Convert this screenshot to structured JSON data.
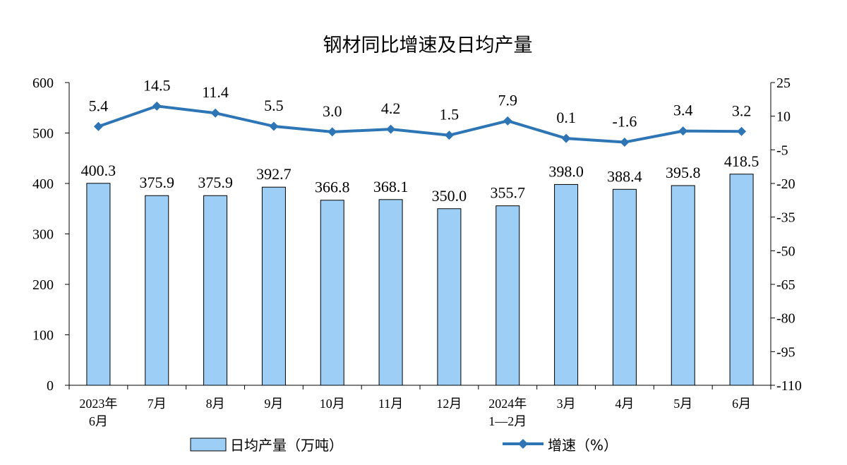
{
  "chart_data": {
    "type": "bar+line",
    "title": "钢材同比增速及日均产量",
    "categories": [
      [
        "2023年",
        "6月"
      ],
      [
        "7月"
      ],
      [
        "8月"
      ],
      [
        "9月"
      ],
      [
        "10月"
      ],
      [
        "11月"
      ],
      [
        "12月"
      ],
      [
        "2024年",
        "1—2月"
      ],
      [
        "3月"
      ],
      [
        "4月"
      ],
      [
        "5月"
      ],
      [
        "6月"
      ]
    ],
    "series": [
      {
        "name": "日均产量（万吨）",
        "type": "bar",
        "axis": "left",
        "values": [
          400.3,
          375.9,
          375.9,
          392.7,
          366.8,
          368.1,
          350.0,
          355.7,
          398.0,
          388.4,
          395.8,
          418.5
        ],
        "labels": [
          "400.3",
          "375.9",
          "375.9",
          "392.7",
          "366.8",
          "368.1",
          "350.0",
          "355.7",
          "398.0",
          "388.4",
          "395.8",
          "418.5"
        ],
        "color": "#9dcef5",
        "stroke": "#000000"
      },
      {
        "name": "增速（%）",
        "type": "line",
        "axis": "right",
        "values": [
          5.4,
          14.5,
          11.4,
          5.5,
          3.0,
          4.2,
          1.5,
          7.9,
          0.1,
          -1.6,
          3.4,
          3.2
        ],
        "labels": [
          "5.4",
          "14.5",
          "11.4",
          "5.5",
          "3.0",
          "4.2",
          "1.5",
          "7.9",
          "0.1",
          "-1.6",
          "3.4",
          "3.2"
        ],
        "color": "#2e75b6",
        "marker": "diamond"
      }
    ],
    "y_left": {
      "min": 0,
      "max": 600,
      "ticks": [
        0,
        100,
        200,
        300,
        400,
        500,
        600
      ]
    },
    "y_right": {
      "min": -110,
      "max": 25,
      "ticks": [
        25,
        10,
        -5,
        -20,
        -35,
        -50,
        -65,
        -80,
        -95,
        -110
      ]
    },
    "grid": false,
    "legend_position": "bottom"
  }
}
